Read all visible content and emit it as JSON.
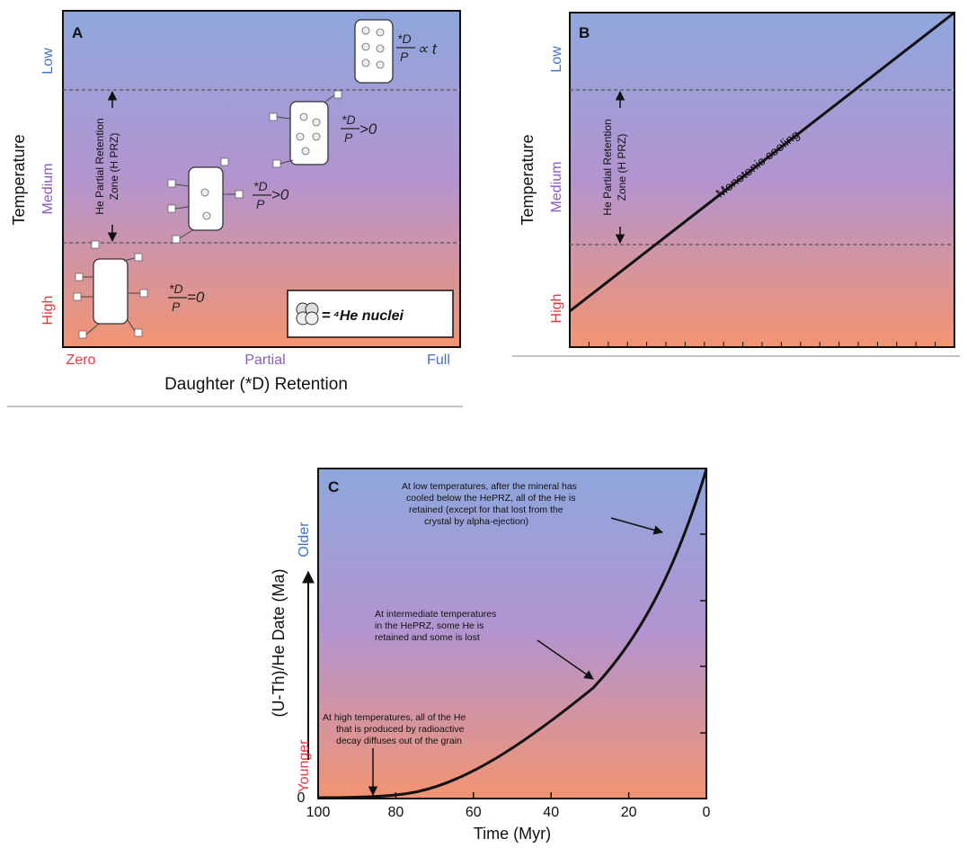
{
  "colors": {
    "low": "#3f72c6",
    "medium": "#8b5bc6",
    "high": "#e8383f",
    "grad_top": "#8ea7dd",
    "grad_mid": "#b394cf",
    "grad_bottom": "#f39472",
    "axis_text": "#111111"
  },
  "panelA": {
    "letter": "A",
    "y_axis_title": "Temperature",
    "y_low": "Low",
    "y_medium": "Medium",
    "y_high": "High",
    "x_axis_title": "Daughter (*D) Retention",
    "x_zero": "Zero",
    "x_partial": "Partial",
    "x_full": "Full",
    "prz_line1": "He Partial Retention",
    "prz_line2": "Zone (H PRZ)",
    "ratio_zero": "=0",
    "ratio_pos1": ">0",
    "ratio_pos2": ">0",
    "ratio_t": "∝ t",
    "ratio_num": "*D",
    "ratio_den": "P",
    "legend_equals": "=",
    "legend_text": "⁴He nuclei"
  },
  "panelB": {
    "letter": "B",
    "y_axis_title": "Temperature",
    "y_low": "Low",
    "y_medium": "Medium",
    "y_high": "High",
    "prz_line1": "He Partial Retention",
    "prz_line2": "Zone (H PRZ)",
    "line_label": "Monotonic cooling"
  },
  "panelC": {
    "letter": "C",
    "y_axis_title": "(U-Th)/He Date (Ma)",
    "y_older": "Older",
    "y_younger": "Younger",
    "y_zero": "0",
    "x_axis_title": "Time (Myr)",
    "x_ticks": [
      "100",
      "80",
      "60",
      "40",
      "20",
      "0"
    ],
    "note_low": [
      "At low temperatures, after the mineral has",
      "cooled below the HePRZ, all of the He is",
      "retained (except for that lost from the",
      "crystal by alpha-ejection)"
    ],
    "note_mid": [
      "At intermediate temperatures",
      "in the HePRZ, some He is",
      "retained and some is lost"
    ],
    "note_high": [
      "At high temperatures, all of the He",
      "that is produced by radioactive",
      "decay diffuses out of the grain"
    ]
  }
}
